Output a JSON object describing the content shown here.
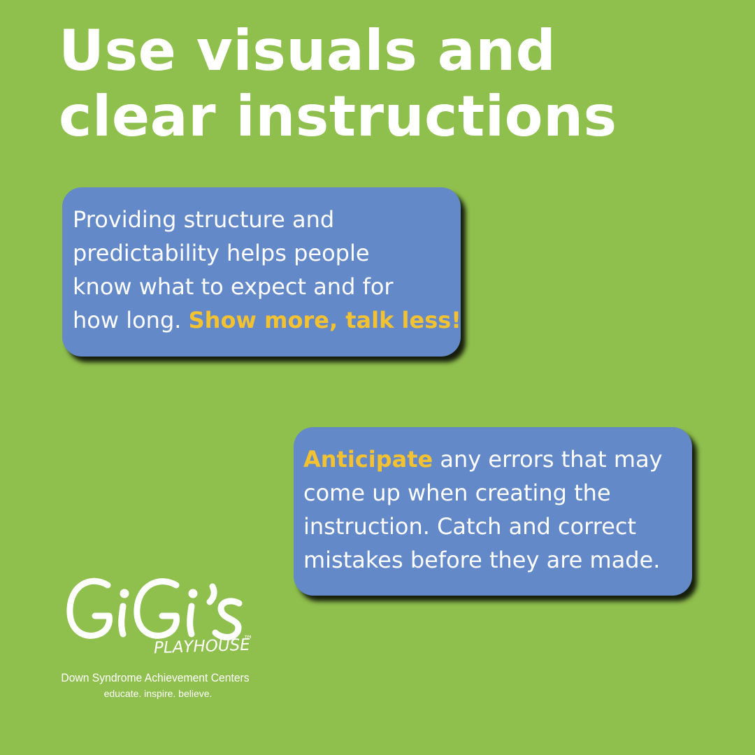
{
  "title": {
    "line1": "Use visuals and",
    "line2": "clear instructions"
  },
  "card1": {
    "line1": "Providing structure and",
    "line2": "predictability helps people",
    "line3": "know what to expect and for",
    "line4_plain": "how long. ",
    "line4_highlight": "Show more, talk less!"
  },
  "card2": {
    "line1_highlight": "Anticipate",
    "line1_plain": " any errors that may",
    "line2": "come up when creating the",
    "line3": "instruction. Catch and correct",
    "line4": "mistakes before they are made."
  },
  "logo": {
    "name": "GiGi's",
    "sub": "PLAYHOUSE",
    "tm": "™",
    "tagline": "Down Syndrome Achievement Centers",
    "motto": "educate. inspire. believe."
  },
  "colors": {
    "background": "#8fbf4d",
    "card": "#6389c8",
    "highlight": "#f2c232",
    "text": "#ffffff"
  }
}
